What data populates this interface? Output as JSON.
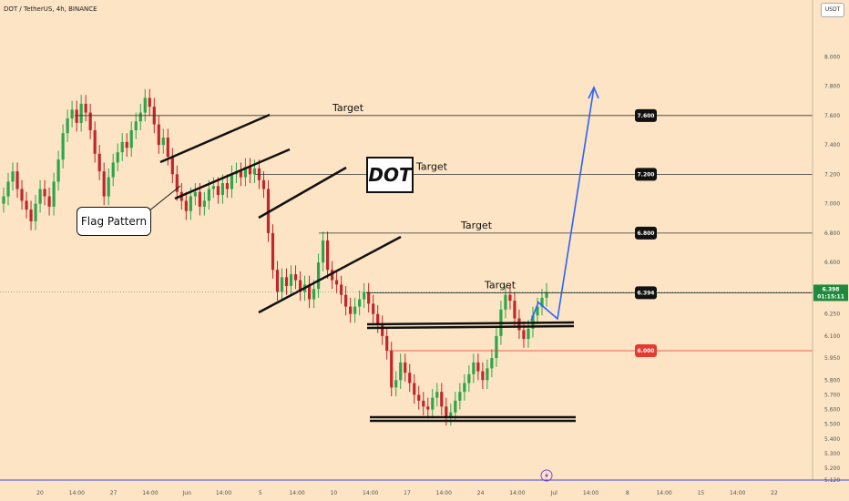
{
  "header": {
    "title": "DOT / TetherUS, 4h, BINANCE",
    "unit": "USDT"
  },
  "annotations": {
    "symbol": "DOT",
    "flag_label": "Flag Pattern"
  },
  "chart_data": {
    "type": "candlestick",
    "ylim": [
      5.12,
      8.2
    ],
    "y_ticks": [
      "8.000",
      "7.800",
      "7.600",
      "7.400",
      "7.200",
      "7.000",
      "6.800",
      "6.600",
      "6.400",
      "6.250",
      "6.100",
      "5.950",
      "5.800",
      "5.700",
      "5.600",
      "5.500",
      "5.400",
      "5.300",
      "5.200",
      "5.120"
    ],
    "x_ticks": [
      "20",
      "14:00",
      "27",
      "14:00",
      "Jun",
      "14:00",
      "5",
      "14:00",
      "10",
      "14:00",
      "17",
      "14:00",
      "24",
      "14:00",
      "Jul",
      "14:00",
      "8",
      "14:00",
      "15",
      "14:00",
      "22"
    ],
    "targets": [
      {
        "label": "Target",
        "price": 7.6,
        "price_label": "7.600"
      },
      {
        "label": "Target",
        "price": 7.2,
        "price_label": "7.200"
      },
      {
        "label": "Target",
        "price": 6.8,
        "price_label": "6.800"
      },
      {
        "label": "Target",
        "price": 6.394,
        "price_label": "6.394"
      }
    ],
    "support": {
      "price": 6.0,
      "price_label": "6.000"
    },
    "current": {
      "price_label": "6.398",
      "countdown": "01:15:11"
    },
    "colors": {
      "up": "#2ca64a",
      "down": "#c0262b",
      "projection": "#2962ff",
      "support": "#e53a2f",
      "last": "#1e8a3b"
    },
    "series_closes": [
      7.05,
      7.15,
      7.22,
      7.1,
      7.02,
      6.96,
      6.88,
      7.0,
      7.1,
      7.05,
      6.98,
      7.15,
      7.3,
      7.48,
      7.58,
      7.64,
      7.55,
      7.68,
      7.62,
      7.5,
      7.34,
      7.22,
      7.05,
      7.18,
      7.28,
      7.35,
      7.42,
      7.38,
      7.5,
      7.56,
      7.62,
      7.72,
      7.66,
      7.54,
      7.4,
      7.45,
      7.32,
      7.2,
      7.08,
      7.02,
      6.95,
      7.05,
      7.08,
      6.98,
      7.02,
      7.1,
      7.12,
      7.06,
      7.14,
      7.1,
      7.2,
      7.22,
      7.18,
      7.25,
      7.2,
      7.24,
      7.16,
      7.1,
      6.8,
      6.55,
      6.4,
      6.5,
      6.44,
      6.52,
      6.48,
      6.4,
      6.45,
      6.35,
      6.42,
      6.6,
      6.75,
      6.55,
      6.48,
      6.45,
      6.38,
      6.3,
      6.25,
      6.3,
      6.35,
      6.4,
      6.32,
      6.25,
      6.18,
      6.1,
      6.0,
      5.75,
      5.8,
      5.92,
      5.85,
      5.78,
      5.7,
      5.66,
      5.62,
      5.6,
      5.68,
      5.72,
      5.62,
      5.55,
      5.58,
      5.66,
      5.72,
      5.78,
      5.84,
      5.92,
      5.86,
      5.8,
      5.88,
      5.95,
      6.1,
      6.28,
      6.38,
      6.34,
      6.22,
      6.14,
      6.08,
      6.15,
      6.24,
      6.3,
      6.36,
      6.4
    ]
  }
}
